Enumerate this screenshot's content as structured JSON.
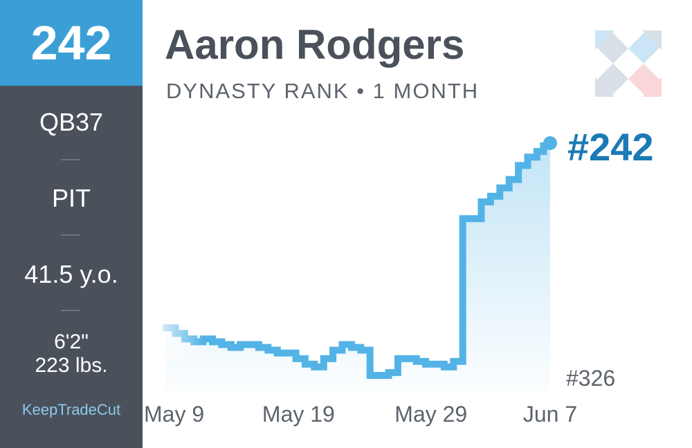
{
  "sidebar": {
    "rank": "242",
    "position_rank": "QB37",
    "team": "PIT",
    "age": "41.5 y.o.",
    "height": "6'2\"",
    "weight": "223 lbs.",
    "brand": "KeepTradeCut"
  },
  "header": {
    "player_name": "Aaron Rodgers",
    "subtitle": "DYNASTY RANK • 1 MONTH"
  },
  "colors": {
    "accent": "#3b9fd6",
    "sidebar": "#4a515b",
    "current_label": "#1a7ab5",
    "line": "#53b3e6"
  },
  "chart_data": {
    "type": "line",
    "title": "Dynasty Rank • 1 Month",
    "x_tick_labels": [
      "May 9",
      "May 19",
      "May 29",
      "Jun 7"
    ],
    "x_tick_days": [
      0,
      10,
      20,
      29
    ],
    "x_range_days": [
      0,
      29
    ],
    "y_inverted": true,
    "y_axis_labels": {
      "current": "#242",
      "lowest": "#326"
    },
    "series": [
      {
        "name": "Dynasty Rank",
        "x_days": [
          0,
          0.7,
          1.4,
          2.1,
          2.8,
          3.5,
          4.2,
          4.9,
          5.6,
          6.3,
          7,
          7.7,
          8.4,
          9.1,
          9.8,
          10.5,
          11.2,
          11.9,
          12.6,
          13.3,
          14,
          14.7,
          15.4,
          16.1,
          16.8,
          17.5,
          18.2,
          18.9,
          19.6,
          20.3,
          21,
          21.7,
          22.4,
          23.1,
          23.8,
          24.5,
          25.2,
          25.9,
          26.6,
          27.3,
          28,
          28.5,
          29
        ],
        "ranks": [
          308,
          310,
          312,
          313,
          312,
          313,
          314,
          315,
          314,
          314,
          315,
          316,
          317,
          317,
          319,
          321,
          322,
          319,
          316,
          314,
          315,
          316,
          325,
          325,
          324,
          319,
          319,
          320,
          321,
          321,
          322,
          320,
          269,
          269,
          263,
          261,
          258,
          255,
          250,
          247,
          245,
          243,
          242
        ]
      }
    ]
  }
}
